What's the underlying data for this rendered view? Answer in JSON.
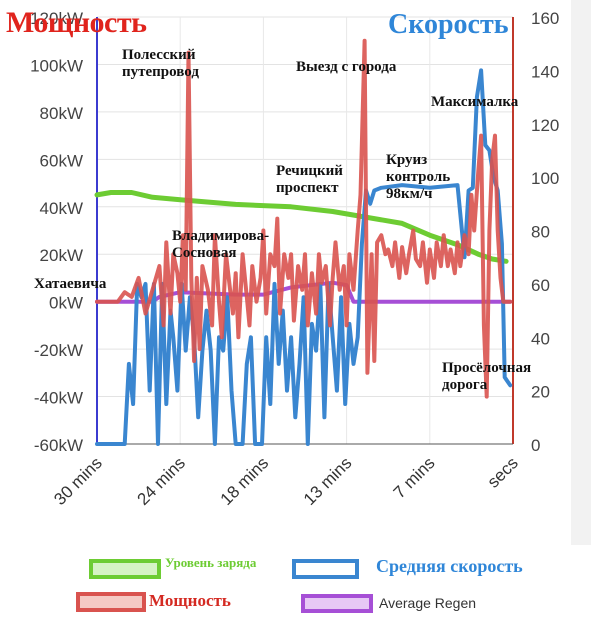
{
  "titles": {
    "left": "Мощность",
    "right": "Скорость"
  },
  "annotations": {
    "polessky": "Полесский\nпутепровод",
    "exit_city": "Выезд с города",
    "maximalka": "Максималка",
    "rechitsky": "Речицкий\nпроспект",
    "cruise": "Круиз\nконтроль\n98км/ч",
    "vladimirova": "Владимирова-\nСосновая",
    "khataevicha": "Хатаевича",
    "proselochnaya": "Просёлочная\nдорога"
  },
  "legend": {
    "charge": "Уровень заряда",
    "avg_speed": "Средняя скорость",
    "power": "Мощность",
    "avg_regen": "Average Regen"
  },
  "colors": {
    "power": "#d9534f",
    "speed": "#3a86d0",
    "charge": "#6dcc33",
    "regen": "#a64fd6",
    "axis_left": "#3b3bd0",
    "axis_right": "#c0392b"
  },
  "chart_data": {
    "type": "line",
    "x_ticks": [
      "30 mins",
      "24 mins",
      "18 mins",
      "13 mins",
      "7 mins",
      "secs"
    ],
    "y_left": {
      "label": "",
      "ticks": [
        "-60kW",
        "-40kW",
        "-20kW",
        "0kW",
        "20kW",
        "40kW",
        "60kW",
        "80kW",
        "100kW",
        "120kW"
      ],
      "range": [
        -60,
        120
      ],
      "unit": "kW"
    },
    "y_right": {
      "label": "",
      "ticks": [
        "0",
        "20",
        "40",
        "60",
        "80",
        "100",
        "120",
        "140",
        "160"
      ],
      "range": [
        0,
        160
      ]
    },
    "x_range": [
      30,
      0
    ],
    "series": [
      {
        "name": "Уровень заряда",
        "axis": "left",
        "points": [
          [
            30,
            45
          ],
          [
            29,
            46
          ],
          [
            27.5,
            46
          ],
          [
            26,
            44
          ],
          [
            24,
            43
          ],
          [
            20,
            41
          ],
          [
            16,
            40
          ],
          [
            13,
            38
          ],
          [
            10,
            35
          ],
          [
            8,
            33
          ],
          [
            6,
            28
          ],
          [
            4,
            24
          ],
          [
            2.5,
            20
          ],
          [
            1.5,
            18
          ],
          [
            0.5,
            17
          ]
        ]
      },
      {
        "name": "Средняя скорость",
        "axis": "right",
        "points": [
          [
            30,
            0
          ],
          [
            28,
            0
          ],
          [
            27.7,
            30
          ],
          [
            27.4,
            15
          ],
          [
            27.1,
            60
          ],
          [
            26.8,
            55
          ],
          [
            26.5,
            60
          ],
          [
            26.2,
            20
          ],
          [
            25.9,
            60
          ],
          [
            25.6,
            0
          ],
          [
            25.3,
            60
          ],
          [
            25,
            15
          ],
          [
            24.7,
            50
          ],
          [
            24.5,
            40
          ],
          [
            24.2,
            20
          ],
          [
            23.9,
            60
          ],
          [
            23.6,
            35
          ],
          [
            23.3,
            55
          ],
          [
            23,
            40
          ],
          [
            22.7,
            10
          ],
          [
            22.4,
            35
          ],
          [
            22.1,
            50
          ],
          [
            21.8,
            35
          ],
          [
            21.5,
            0
          ],
          [
            21.2,
            40
          ],
          [
            20.9,
            35
          ],
          [
            20.6,
            55
          ],
          [
            20.3,
            20
          ],
          [
            20,
            0
          ],
          [
            19.5,
            0
          ],
          [
            19.2,
            30
          ],
          [
            18.9,
            40
          ],
          [
            18.6,
            0
          ],
          [
            18.1,
            0
          ],
          [
            17.8,
            40
          ],
          [
            17.5,
            15
          ],
          [
            17.2,
            60
          ],
          [
            16.9,
            30
          ],
          [
            16.6,
            50
          ],
          [
            16.3,
            20
          ],
          [
            16,
            40
          ],
          [
            15.7,
            10
          ],
          [
            15.4,
            30
          ],
          [
            15.1,
            55
          ],
          [
            14.8,
            0
          ],
          [
            14.5,
            45
          ],
          [
            14.2,
            35
          ],
          [
            13.9,
            60
          ],
          [
            13.6,
            10
          ],
          [
            13.3,
            60
          ],
          [
            13,
            40
          ],
          [
            12.7,
            20
          ],
          [
            12.4,
            55
          ],
          [
            12.1,
            15
          ],
          [
            11.8,
            45
          ],
          [
            11.5,
            30
          ],
          [
            11.2,
            40
          ],
          [
            10.9,
            75
          ],
          [
            10.6,
            95
          ],
          [
            10.3,
            90
          ],
          [
            10,
            95
          ],
          [
            9.5,
            96
          ],
          [
            8,
            97
          ],
          [
            6,
            96
          ],
          [
            4,
            97
          ],
          [
            3.5,
            70
          ],
          [
            3.2,
            95
          ],
          [
            2.9,
            96
          ],
          [
            2.6,
            130
          ],
          [
            2.3,
            140
          ],
          [
            2,
            112
          ],
          [
            1.7,
            110
          ],
          [
            1.4,
            100
          ],
          [
            1.1,
            95
          ],
          [
            0.8,
            75
          ],
          [
            0.6,
            25
          ],
          [
            0.2,
            22
          ]
        ]
      },
      {
        "name": "Мощность",
        "axis": "left",
        "points": [
          [
            30,
            0
          ],
          [
            28.5,
            0
          ],
          [
            28,
            4
          ],
          [
            27.5,
            2
          ],
          [
            27,
            10
          ],
          [
            26.5,
            -5
          ],
          [
            26,
            5
          ],
          [
            25.5,
            15
          ],
          [
            25.2,
            -10
          ],
          [
            25,
            25
          ],
          [
            24.7,
            -5
          ],
          [
            24.5,
            20
          ],
          [
            24.2,
            12
          ],
          [
            24,
            0
          ],
          [
            23.8,
            28
          ],
          [
            23.6,
            5
          ],
          [
            23.4,
            105
          ],
          [
            23.2,
            10
          ],
          [
            23,
            -25
          ],
          [
            22.8,
            10
          ],
          [
            22.6,
            -20
          ],
          [
            22.4,
            15
          ],
          [
            22.2,
            10
          ],
          [
            22,
            5
          ],
          [
            21.7,
            -10
          ],
          [
            21.5,
            28
          ],
          [
            21.2,
            0
          ],
          [
            21,
            -15
          ],
          [
            20.7,
            20
          ],
          [
            20.4,
            5
          ],
          [
            20.2,
            -5
          ],
          [
            20,
            12
          ],
          [
            19.8,
            -15
          ],
          [
            19.5,
            20
          ],
          [
            19.2,
            2
          ],
          [
            19,
            -10
          ],
          [
            18.8,
            15
          ],
          [
            18.5,
            0
          ],
          [
            18.2,
            10
          ],
          [
            18,
            30
          ],
          [
            17.8,
            -5
          ],
          [
            17.5,
            20
          ],
          [
            17.2,
            15
          ],
          [
            17,
            35
          ],
          [
            16.8,
            -5
          ],
          [
            16.5,
            20
          ],
          [
            16.2,
            10
          ],
          [
            16,
            20
          ],
          [
            15.8,
            -8
          ],
          [
            15.5,
            15
          ],
          [
            15.2,
            5
          ],
          [
            15,
            20
          ],
          [
            14.8,
            -10
          ],
          [
            14.5,
            12
          ],
          [
            14.2,
            -5
          ],
          [
            14,
            20
          ],
          [
            13.8,
            8
          ],
          [
            13.5,
            15
          ],
          [
            13.2,
            -10
          ],
          [
            13,
            10
          ],
          [
            12.8,
            25
          ],
          [
            12.5,
            5
          ],
          [
            12.2,
            15
          ],
          [
            12,
            -10
          ],
          [
            11.8,
            20
          ],
          [
            11.5,
            5
          ],
          [
            11.2,
            30
          ],
          [
            11,
            45
          ],
          [
            10.7,
            110
          ],
          [
            10.5,
            -30
          ],
          [
            10.2,
            20
          ],
          [
            10,
            -25
          ],
          [
            9.8,
            25
          ],
          [
            9.5,
            28
          ],
          [
            9.2,
            20
          ],
          [
            9,
            22
          ],
          [
            8.7,
            15
          ],
          [
            8.5,
            25
          ],
          [
            8.2,
            10
          ],
          [
            8,
            23
          ],
          [
            7.7,
            12
          ],
          [
            7.5,
            20
          ],
          [
            7.2,
            30
          ],
          [
            7,
            18
          ],
          [
            6.7,
            15
          ],
          [
            6.5,
            25
          ],
          [
            6.2,
            8
          ],
          [
            6,
            22
          ],
          [
            5.7,
            10
          ],
          [
            5.5,
            25
          ],
          [
            5.2,
            15
          ],
          [
            5,
            28
          ],
          [
            4.7,
            15
          ],
          [
            4.5,
            22
          ],
          [
            4.2,
            12
          ],
          [
            4,
            25
          ],
          [
            3.8,
            15
          ],
          [
            3.5,
            28
          ],
          [
            3.2,
            20
          ],
          [
            3,
            45
          ],
          [
            2.8,
            30
          ],
          [
            2.5,
            55
          ],
          [
            2.3,
            70
          ],
          [
            2.1,
            -10
          ],
          [
            1.9,
            -40
          ],
          [
            1.7,
            30
          ],
          [
            1.5,
            60
          ],
          [
            1.3,
            70
          ],
          [
            1.1,
            30
          ],
          [
            0.9,
            10
          ],
          [
            0.7,
            0
          ],
          [
            0.4,
            0
          ],
          [
            0.2,
            0
          ]
        ]
      },
      {
        "name": "Average Regen",
        "axis": "left",
        "points": [
          [
            30,
            0
          ],
          [
            26,
            0
          ],
          [
            25.5,
            2
          ],
          [
            24,
            4
          ],
          [
            20,
            3
          ],
          [
            18,
            3
          ],
          [
            16,
            6
          ],
          [
            13,
            8
          ],
          [
            12,
            7
          ],
          [
            11.5,
            0
          ],
          [
            0.2,
            0
          ]
        ]
      }
    ]
  }
}
